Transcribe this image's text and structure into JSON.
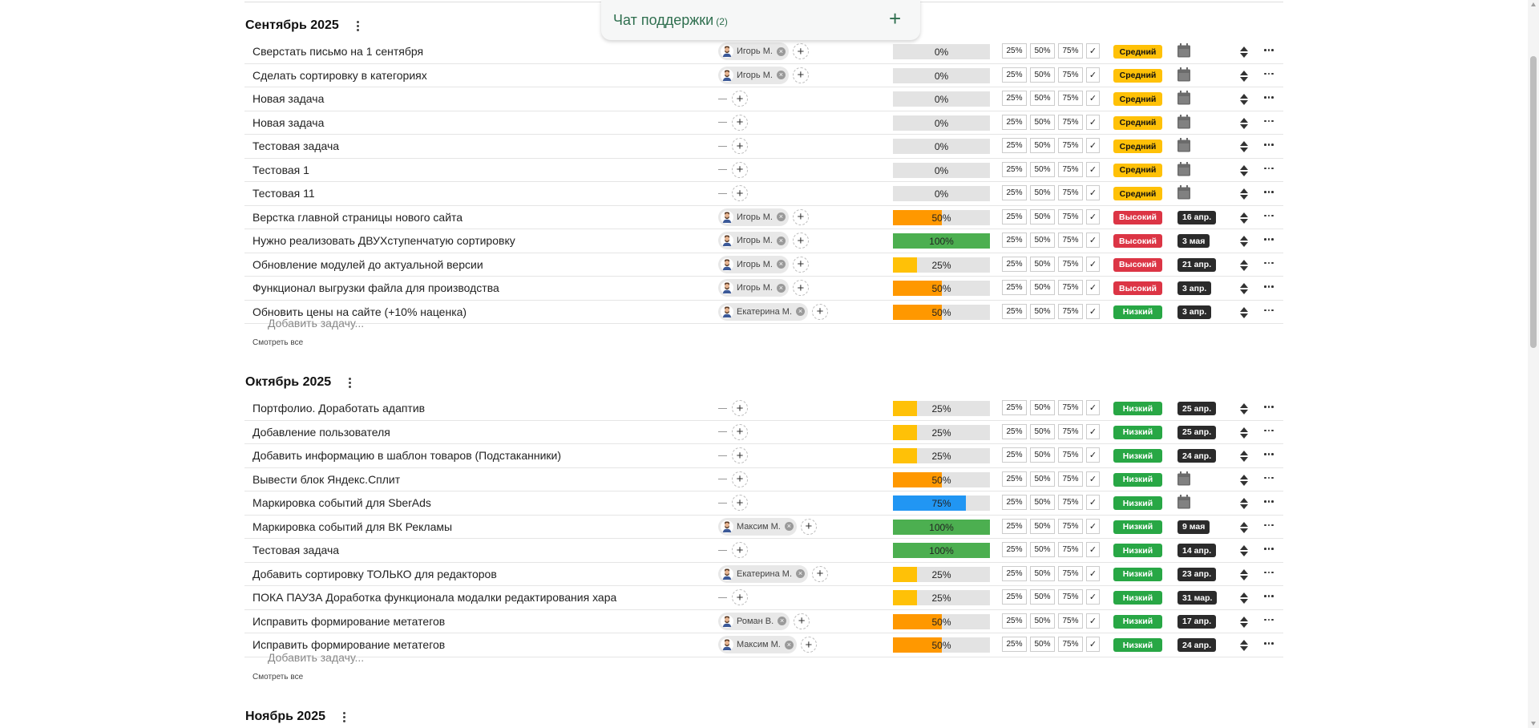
{
  "chat": {
    "title": "Чат поддержки",
    "count": "(2)",
    "add_icon": "plus-icon"
  },
  "ui": {
    "add_task_label": "Добавить задачу...",
    "see_all_label": "Смотреть все",
    "percent_buttons": [
      "25%",
      "50%",
      "75%"
    ],
    "done_mark": "✓"
  },
  "colors": {
    "low": "#28a745",
    "medium": "#ffc107",
    "high": "#dc3545",
    "bar_25": "#ffc107",
    "bar_50": "#ff9800",
    "bar_75": "#2196f3",
    "bar_100": "#4caf50",
    "date_badge": "#2b2b2b",
    "chat_text": "#2f6f4f"
  },
  "groups": [
    {
      "title": "Сентябрь 2025",
      "tasks": [
        {
          "title": "Сверстать письмо на 1 сентября",
          "assignees": [
            "Игорь М."
          ],
          "progress": 0,
          "progress_label": "0%",
          "priority": "medium",
          "priority_label": "Средний",
          "date": ""
        },
        {
          "title": "Сделать сортировку в категориях",
          "assignees": [
            "Игорь М."
          ],
          "progress": 0,
          "progress_label": "0%",
          "priority": "medium",
          "priority_label": "Средний",
          "date": ""
        },
        {
          "title": "Новая задача",
          "assignees": [],
          "progress": 0,
          "progress_label": "0%",
          "priority": "medium",
          "priority_label": "Средний",
          "date": ""
        },
        {
          "title": "Новая задача",
          "assignees": [],
          "progress": 0,
          "progress_label": "0%",
          "priority": "medium",
          "priority_label": "Средний",
          "date": ""
        },
        {
          "title": "Тестовая задача",
          "assignees": [],
          "progress": 0,
          "progress_label": "0%",
          "priority": "medium",
          "priority_label": "Средний",
          "date": ""
        },
        {
          "title": "Тестовая 1",
          "assignees": [],
          "progress": 0,
          "progress_label": "0%",
          "priority": "medium",
          "priority_label": "Средний",
          "date": ""
        },
        {
          "title": "Тестовая 11",
          "assignees": [],
          "progress": 0,
          "progress_label": "0%",
          "priority": "medium",
          "priority_label": "Средний",
          "date": ""
        },
        {
          "title": "Верстка главной страницы нового сайта",
          "assignees": [
            "Игорь М."
          ],
          "progress": 50,
          "progress_label": "50%",
          "priority": "high",
          "priority_label": "Высокий",
          "date": "16 апр."
        },
        {
          "title": "Нужно реализовать ДВУХступенчатую сортировку",
          "assignees": [
            "Игорь М."
          ],
          "progress": 100,
          "progress_label": "100%",
          "priority": "high",
          "priority_label": "Высокий",
          "date": "3 мая"
        },
        {
          "title": "Обновление модулей до актуальной версии",
          "assignees": [
            "Игорь М."
          ],
          "progress": 25,
          "progress_label": "25%",
          "priority": "high",
          "priority_label": "Высокий",
          "date": "21 апр."
        },
        {
          "title": "Функционал выгрузки файла для производства",
          "assignees": [
            "Игорь М."
          ],
          "progress": 50,
          "progress_label": "50%",
          "priority": "high",
          "priority_label": "Высокий",
          "date": "3 апр."
        },
        {
          "title": "Обновить цены на сайте (+10% наценка)",
          "assignees": [
            "Екатерина М."
          ],
          "progress": 50,
          "progress_label": "50%",
          "priority": "low",
          "priority_label": "Низкий",
          "date": "3 апр."
        }
      ]
    },
    {
      "title": "Октябрь 2025",
      "tasks": [
        {
          "title": "Портфолио. Доработать адаптив",
          "assignees": [],
          "progress": 25,
          "progress_label": "25%",
          "priority": "low",
          "priority_label": "Низкий",
          "date": "25 апр."
        },
        {
          "title": "Добавление пользователя",
          "assignees": [],
          "progress": 25,
          "progress_label": "25%",
          "priority": "low",
          "priority_label": "Низкий",
          "date": "25 апр."
        },
        {
          "title": "Добавить информацию в шаблон товаров (Подстаканники)",
          "assignees": [],
          "progress": 25,
          "progress_label": "25%",
          "priority": "low",
          "priority_label": "Низкий",
          "date": "24 апр."
        },
        {
          "title": "Вывести блок Яндекс.Сплит",
          "assignees": [],
          "progress": 50,
          "progress_label": "50%",
          "priority": "low",
          "priority_label": "Низкий",
          "date": ""
        },
        {
          "title": "Маркировка событий для SberAds",
          "assignees": [],
          "progress": 75,
          "progress_label": "75%",
          "priority": "low",
          "priority_label": "Низкий",
          "date": ""
        },
        {
          "title": "Маркировка событий для ВК Рекламы",
          "assignees": [
            "Максим М."
          ],
          "progress": 100,
          "progress_label": "100%",
          "priority": "low",
          "priority_label": "Низкий",
          "date": "9 мая"
        },
        {
          "title": "Тестовая задача",
          "assignees": [],
          "progress": 100,
          "progress_label": "100%",
          "priority": "low",
          "priority_label": "Низкий",
          "date": "14 апр."
        },
        {
          "title": "Добавить сортировку ТОЛЬКО для редакторов",
          "assignees": [
            "Екатерина М."
          ],
          "progress": 25,
          "progress_label": "25%",
          "priority": "low",
          "priority_label": "Низкий",
          "date": "23 апр."
        },
        {
          "title": "ПОКА ПАУЗА Доработка функционала модалки редактирования хара",
          "assignees": [],
          "progress": 25,
          "progress_label": "25%",
          "priority": "low",
          "priority_label": "Низкий",
          "date": "31 мар."
        },
        {
          "title": "Исправить формирование метатегов",
          "assignees": [
            "Роман В."
          ],
          "progress": 50,
          "progress_label": "50%",
          "priority": "low",
          "priority_label": "Низкий",
          "date": "17 апр."
        },
        {
          "title": "Исправить формирование метатегов",
          "assignees": [
            "Максим М."
          ],
          "progress": 50,
          "progress_label": "50%",
          "priority": "low",
          "priority_label": "Низкий",
          "date": "24 апр."
        }
      ]
    },
    {
      "title": "Ноябрь 2025",
      "tasks": []
    }
  ]
}
